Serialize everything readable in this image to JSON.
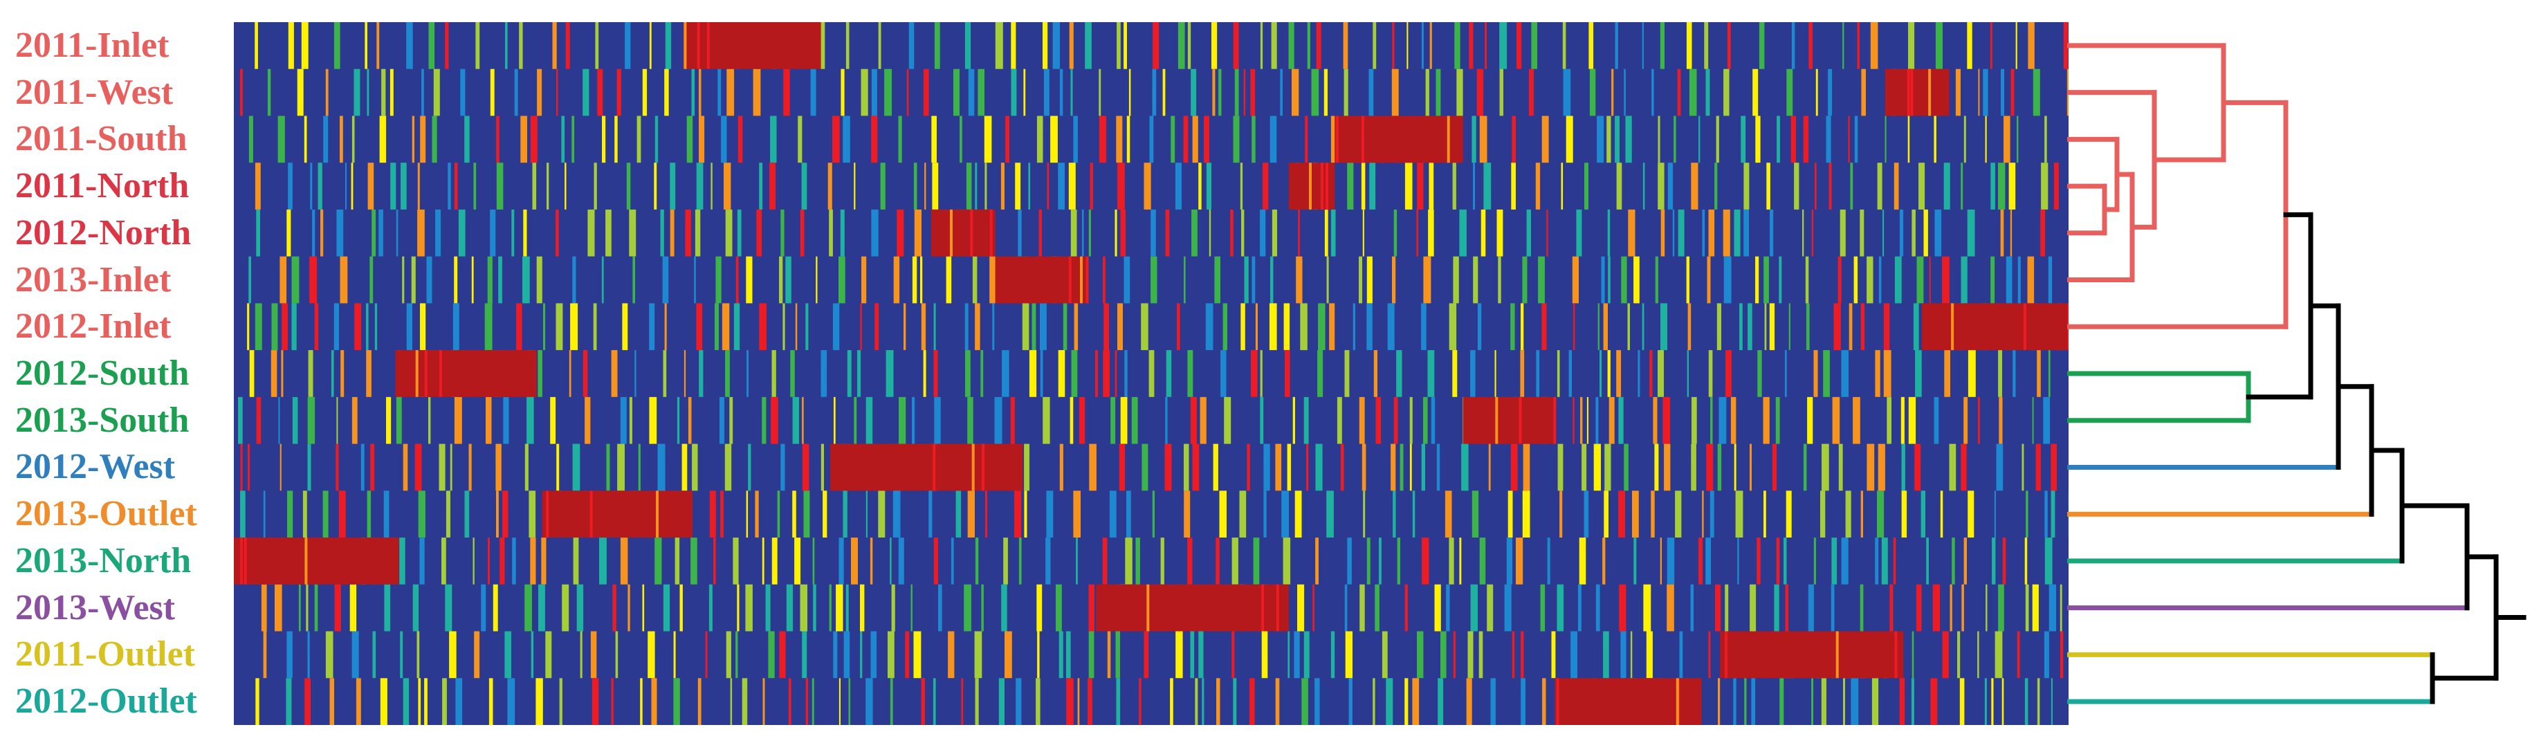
{
  "chart_data": {
    "type": "heatmap",
    "rows": [
      {
        "label": "2011-Inlet",
        "color": "#e8605e"
      },
      {
        "label": "2011-West",
        "color": "#e8605e"
      },
      {
        "label": "2011-South",
        "color": "#e8605e"
      },
      {
        "label": "2011-North",
        "color": "#dc3545"
      },
      {
        "label": "2012-North",
        "color": "#dc3545"
      },
      {
        "label": "2013-Inlet",
        "color": "#e8605e"
      },
      {
        "label": "2012-Inlet",
        "color": "#e8605e"
      },
      {
        "label": "2012-South",
        "color": "#1aa050"
      },
      {
        "label": "2013-South",
        "color": "#1aa050"
      },
      {
        "label": "2012-West",
        "color": "#2f7fbf"
      },
      {
        "label": "2013-Outlet",
        "color": "#f08c2a"
      },
      {
        "label": "2013-North",
        "color": "#1aa87a"
      },
      {
        "label": "2013-West",
        "color": "#8a4fa0"
      },
      {
        "label": "2011-Outlet",
        "color": "#d7c21f"
      },
      {
        "label": "2012-Outlet",
        "color": "#1aa89a"
      }
    ],
    "colormap": [
      "#2b3990",
      "#1e88d0",
      "#20b2a0",
      "#3cb44a",
      "#a6ce39",
      "#fff200",
      "#f7941d",
      "#ed1c24",
      "#b5191c"
    ],
    "background_color": "#2b3990",
    "high_value_color": "#b5191c",
    "dense_blocks": [
      {
        "row": 0,
        "start": 0.245,
        "end": 0.32
      },
      {
        "row": 1,
        "start": 0.9,
        "end": 0.935
      },
      {
        "row": 2,
        "start": 0.6,
        "end": 0.67
      },
      {
        "row": 3,
        "start": 0.575,
        "end": 0.6
      },
      {
        "row": 4,
        "start": 0.38,
        "end": 0.415
      },
      {
        "row": 5,
        "start": 0.415,
        "end": 0.465
      },
      {
        "row": 6,
        "start": 0.92,
        "end": 1.0
      },
      {
        "row": 7,
        "start": 0.088,
        "end": 0.165
      },
      {
        "row": 8,
        "start": 0.67,
        "end": 0.72
      },
      {
        "row": 9,
        "start": 0.325,
        "end": 0.43
      },
      {
        "row": 10,
        "start": 0.168,
        "end": 0.25
      },
      {
        "row": 11,
        "start": 0.0,
        "end": 0.09
      },
      {
        "row": 12,
        "start": 0.47,
        "end": 0.575
      },
      {
        "row": 13,
        "start": 0.81,
        "end": 0.91
      },
      {
        "row": 14,
        "start": 0.72,
        "end": 0.8
      }
    ],
    "dendrogram": {
      "leaf_order": [
        "2011-Inlet",
        "2011-West",
        "2011-South",
        "2011-North",
        "2012-North",
        "2013-Inlet",
        "2012-Inlet",
        "2012-South",
        "2013-South",
        "2012-West",
        "2013-Outlet",
        "2013-North",
        "2013-West",
        "2011-Outlet",
        "2012-Outlet"
      ],
      "cluster_colors": {
        "inlet_north_group": "#e8605e",
        "south_group": "#1aa050",
        "west_2012": "#2f7fbf",
        "outlet_2013": "#f08c2a",
        "north_2013": "#1aa87a",
        "west_2013": "#8a4fa0",
        "outlet_2011": "#d7c21f",
        "outlet_2012": "#1aa89a",
        "root": "#000000"
      }
    }
  }
}
